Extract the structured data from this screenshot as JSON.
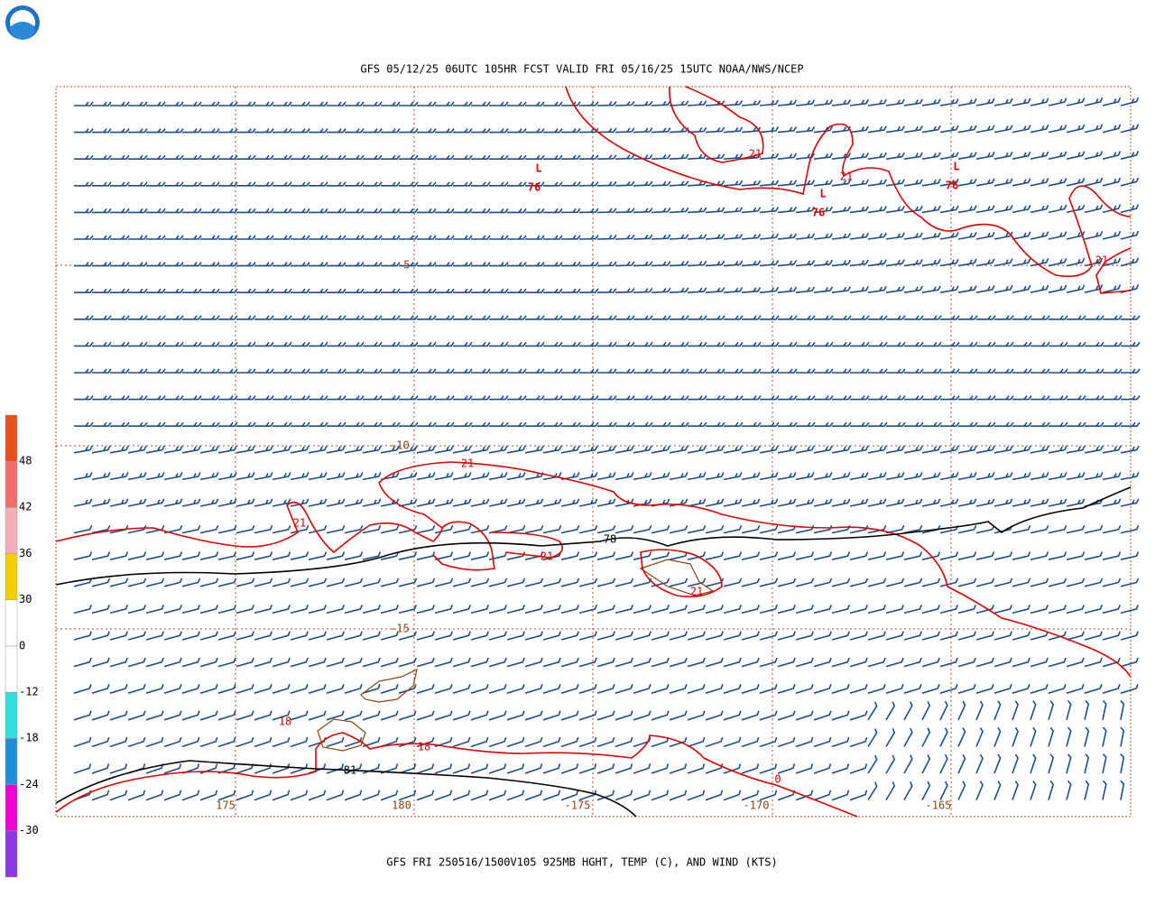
{
  "header": {
    "title": "GFS 05/12/25 06UTC 105HR FCST VALID FRI 05/16/25 15UTC NOAA/NWS/NCEP",
    "footer": "GFS FRI 250516/1500V105 925MB HGHT, TEMP (C), AND WIND (KTS)"
  },
  "colorbar": {
    "labels": [
      "48",
      "42",
      "36",
      "30",
      "0",
      "-12",
      "-18",
      "-24",
      "-30"
    ]
  },
  "lat_labels": [
    "-5",
    "-10",
    "-15"
  ],
  "lon_labels": [
    "175",
    "180",
    "-175",
    "-170",
    "-165"
  ],
  "lows": [
    {
      "symbol": "L",
      "value": "76"
    },
    {
      "symbol": "L",
      "value": "76"
    },
    {
      "symbol": "L",
      "value": "76"
    }
  ],
  "contour_labels": [
    "21",
    "21",
    "21",
    "21",
    "21",
    "21",
    "21",
    "18",
    "18",
    "0",
    "78",
    "81"
  ]
}
